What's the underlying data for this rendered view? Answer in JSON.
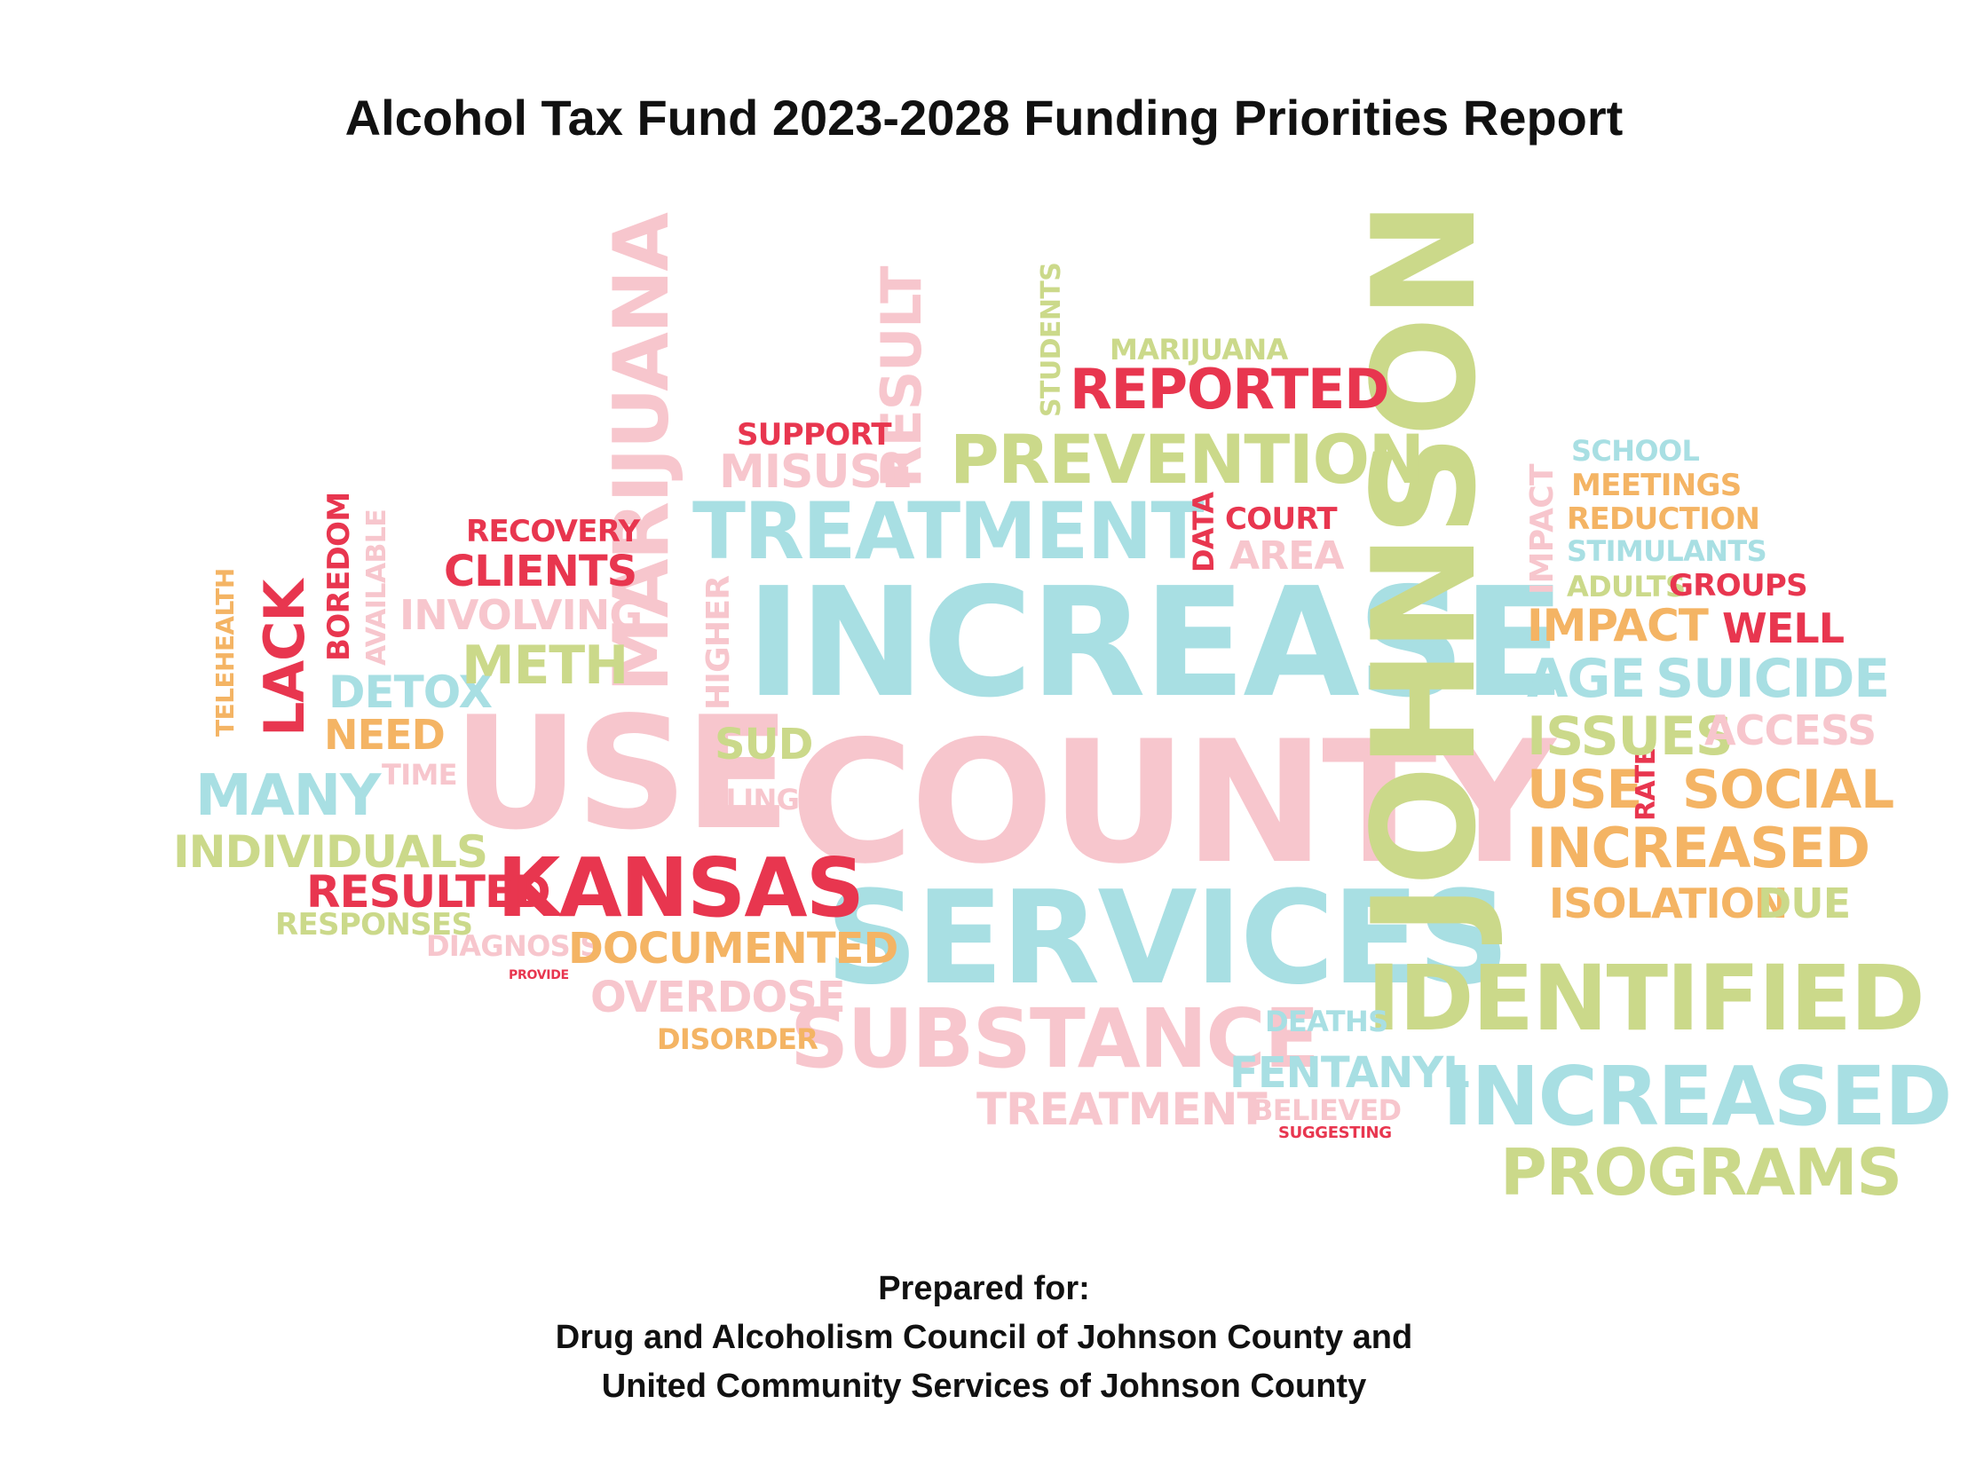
{
  "title": "Alcohol Tax Fund 2023-2028 Funding Priorities Report",
  "colors": {
    "pink": "#f7c6cd",
    "blue": "#a8dfe3",
    "green": "#cbd98a",
    "red": "#e8364f",
    "orange": "#f4b464"
  },
  "cloud": {
    "johnson": "JOHNSON",
    "increase": "INCREASE",
    "county": "COUNTY",
    "services": "SERVICES",
    "use_big": "USE",
    "marijuana_v": "MARIJUANA",
    "treatment": "TREATMENT",
    "prevention": "PREVENTION",
    "reported": "REPORTED",
    "result": "RESULT",
    "kansas": "KANSAS",
    "substance": "SUBSTANCE",
    "identified": "IDENTIFIED",
    "increased_blue": "INCREASED",
    "programs": "PROGRAMS",
    "increased_orange": "INCREASED",
    "isolation": "ISOLATION",
    "due": "DUE",
    "social": "SOCIAL",
    "use_orange": "USE",
    "rate": "RATE",
    "issues": "ISSUES",
    "access": "ACCESS",
    "age": "AGE",
    "suicide": "SUICIDE",
    "impact": "IMPACT",
    "impact_v": "IMPACT",
    "well": "WELL",
    "adults": "ADULTS",
    "groups": "GROUPS",
    "stimulants": "STIMULANTS",
    "reduction": "REDUCTION",
    "meetings": "MEETINGS",
    "school": "SCHOOL",
    "lack": "LACK",
    "boredom": "BOREDOM",
    "available": "AVAILABLE",
    "telehealth": "TELEHEALTH",
    "detox": "DETOX",
    "need": "NEED",
    "many": "MANY",
    "individuals": "INDIVIDUALS",
    "resulted": "RESULTED",
    "responses": "RESPONSES",
    "meth": "METH",
    "involving": "INVOLVING",
    "clients": "CLIENTS",
    "recovery": "RECOVERY",
    "support": "SUPPORT",
    "misuse": "MISUSE",
    "higher": "HIGHER",
    "sud": "SUD",
    "filings": "FILINGS",
    "diagnosis": "DIAGNOSIS",
    "documented": "DOCUMENTED",
    "overdose": "OVERDOSE",
    "disorder": "DISORDER",
    "treatment_small": "TREATMENT",
    "fentanyl": "FENTANYL",
    "deaths": "DEATHS",
    "believed": "BELIEVED",
    "suggesting": "SUGGESTING",
    "marijuana_h": "MARIJUANA",
    "students": "STUDENTS",
    "data": "DATA",
    "court": "COURT",
    "area": "AREA",
    "time": "TIME",
    "provide": "PROVIDE"
  },
  "footer": {
    "line1": "Prepared for:",
    "line2": "Drug and Alcoholism Council of Johnson County and",
    "line3": "United Community Services of Johnson County"
  }
}
